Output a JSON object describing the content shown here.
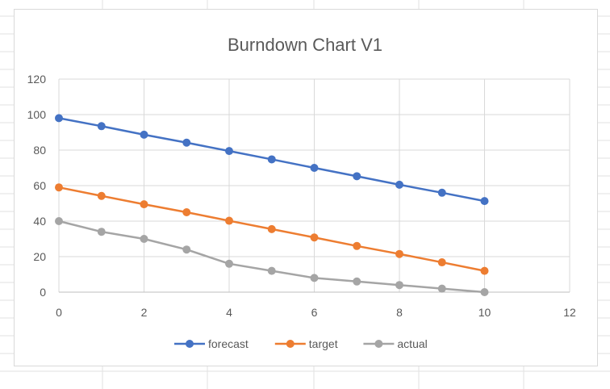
{
  "chart_data": {
    "type": "line",
    "title": "Burndown Chart V1",
    "xlabel": "",
    "ylabel": "",
    "xlim": [
      0,
      12
    ],
    "ylim": [
      0,
      120
    ],
    "x_ticks": [
      0,
      2,
      4,
      6,
      8,
      10,
      12
    ],
    "y_ticks": [
      0,
      20,
      40,
      60,
      80,
      100,
      120
    ],
    "grid": true,
    "legend_position": "bottom",
    "x": [
      0,
      1,
      2,
      3,
      4,
      5,
      6,
      7,
      8,
      9,
      10
    ],
    "series": [
      {
        "name": "forecast",
        "color": "#4472C4",
        "values": [
          98,
          93.5,
          88.7,
          84.2,
          79.5,
          74.8,
          70,
          65.3,
          60.5,
          56,
          51.3
        ]
      },
      {
        "name": "target",
        "color": "#ED7D31",
        "values": [
          59,
          54.2,
          49.5,
          45,
          40.2,
          35.5,
          30.8,
          26,
          21.5,
          16.8,
          12
        ]
      },
      {
        "name": "actual",
        "color": "#A5A5A5",
        "values": [
          40,
          34,
          30,
          24,
          16,
          12,
          8,
          6,
          4,
          2,
          0
        ]
      }
    ]
  }
}
